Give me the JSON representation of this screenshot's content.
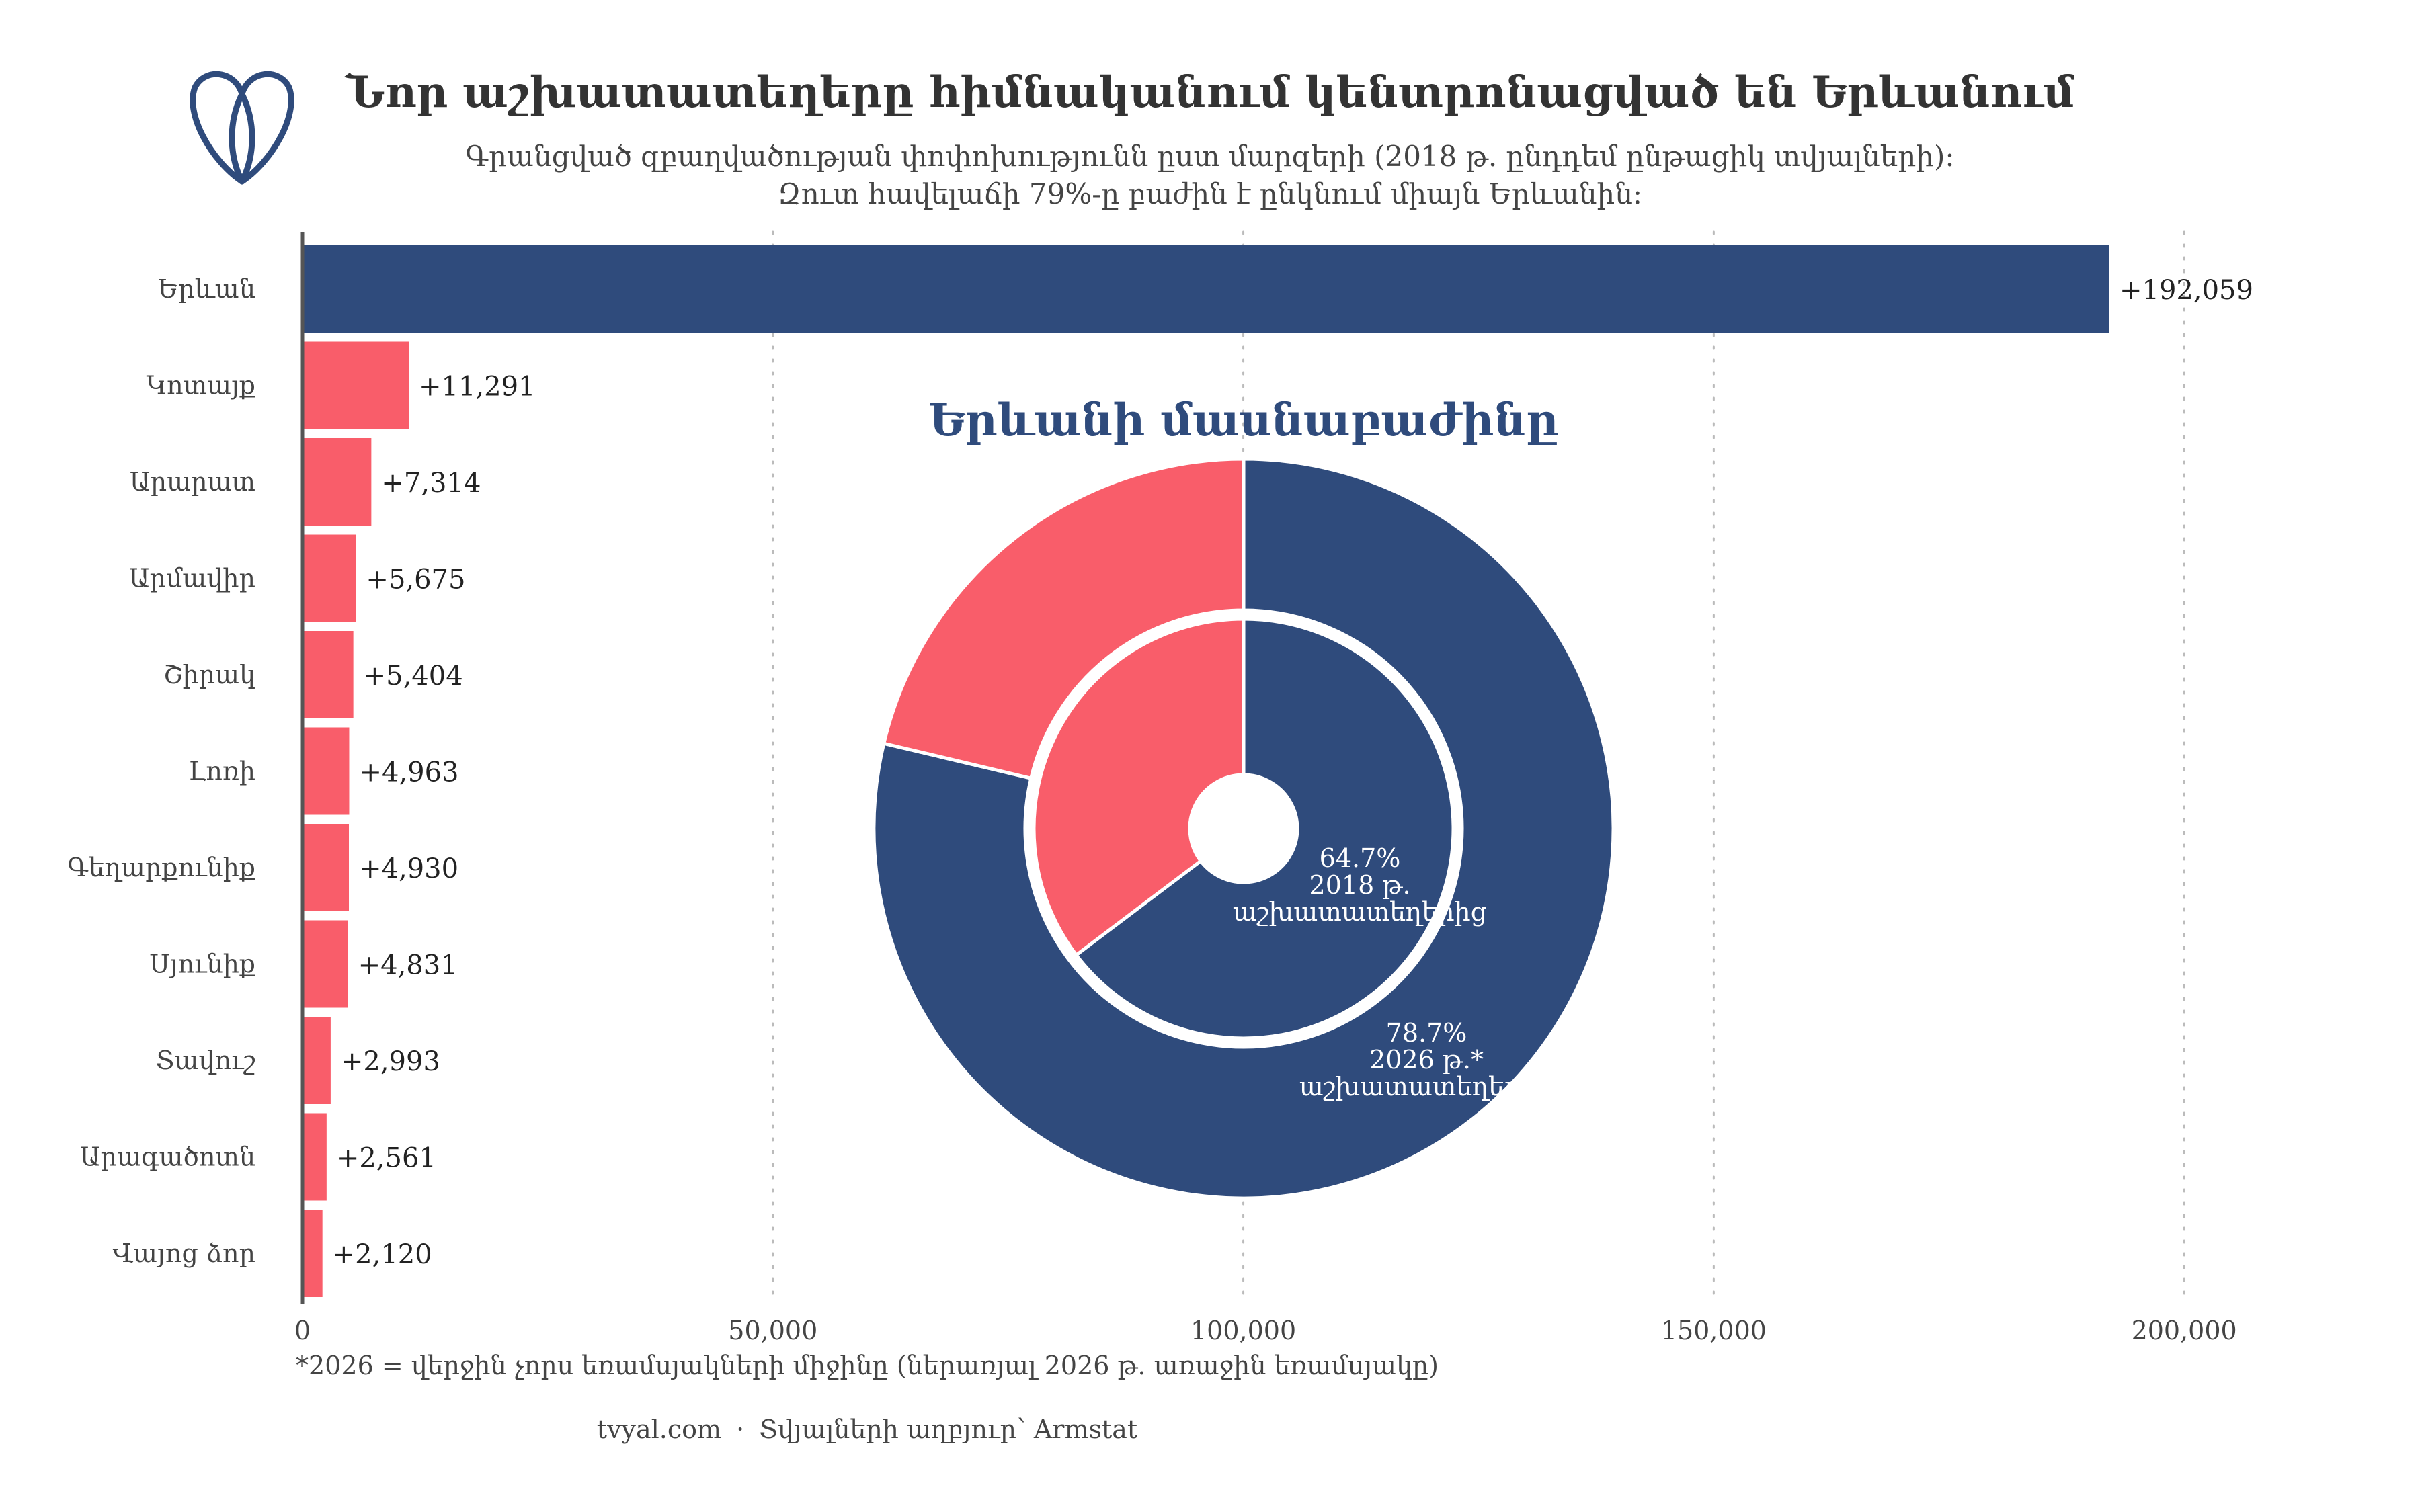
{
  "header": {
    "title": "Նոր աշխատատեղերը հիմնականում կենտրոնացված են Երևանում",
    "subtitle_line1": "Գրանցված զբաղվածության փոփոխությունն ըստ մարզերի (2018 թ. ընդդեմ ընթացիկ տվյալների)։",
    "subtitle_line2": "Զուտ հավելաճի 79%-ը բաժին է ընկնում միայն Երևանին։"
  },
  "logo": {
    "icon": "tvyal-logo-icon",
    "color": "#2f4b7c"
  },
  "colors": {
    "yerevan": "#2f4b7c",
    "other": "#f95d6a",
    "axis": "#555555",
    "grid": "#bbbbbb"
  },
  "chart_data": [
    {
      "type": "bar",
      "orientation": "horizontal",
      "categories": [
        "Երևան",
        "Կոտայք",
        "Արարատ",
        "Արմավիր",
        "Շիրակ",
        "Լոռի",
        "Գեղարքունիք",
        "Սյունիք",
        "Տավուշ",
        "Արագածոտն",
        "Վայոց ձոր"
      ],
      "values": [
        192059,
        11291,
        7314,
        5675,
        5404,
        4963,
        4930,
        4831,
        2993,
        2561,
        2120
      ],
      "value_labels": [
        "+192,059",
        "+11,291",
        "+7,314",
        "+5,675",
        "+5,404",
        "+4,963",
        "+4,930",
        "+4,831",
        "+2,993",
        "+2,561",
        "+2,120"
      ],
      "xlim": [
        0,
        210000
      ],
      "x_ticks": [
        0,
        50000,
        100000,
        150000,
        200000
      ],
      "x_tick_labels": [
        "0",
        "50,000",
        "100,000",
        "150,000",
        "200,000"
      ],
      "grid": "vertical dotted"
    },
    {
      "type": "pie",
      "variant": "nested donut",
      "title": "Երևանի մասնաբաժինը",
      "rings": [
        {
          "ring": "outer",
          "yerevan_share": 78.7,
          "label_line1": "78.7%",
          "label_line2": "2026 թ.*",
          "label_line3": "աշխատատեղերից"
        },
        {
          "ring": "inner",
          "yerevan_share": 64.7,
          "label_line1": "64.7%",
          "label_line2": "2018 թ.",
          "label_line3": "աշխատատեղերից"
        }
      ]
    }
  ],
  "footnote": "*2026 = վերջին չորս եռամսյակների միջինը (ներառյալ 2026 թ. առաջին եռամսյակը)",
  "source": {
    "site": "tvyal.com",
    "separator": "·",
    "text": "Տվյալների աղբյուր՝ Armstat"
  }
}
